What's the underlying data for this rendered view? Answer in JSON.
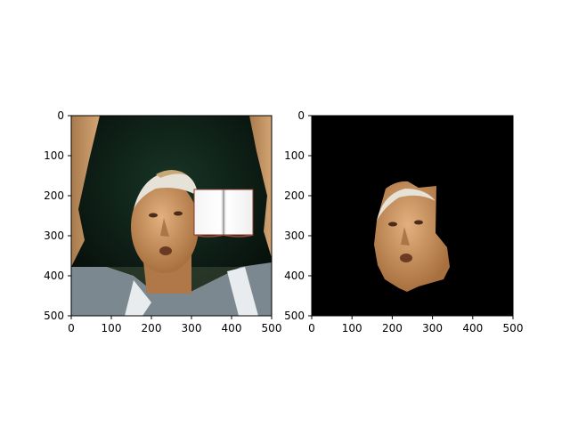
{
  "panels": [
    {
      "x_ticks": [
        "0",
        "100",
        "200",
        "300",
        "400",
        "500"
      ],
      "y_ticks": [
        "0",
        "100",
        "200",
        "300",
        "400",
        "500"
      ]
    },
    {
      "x_ticks": [
        "0",
        "100",
        "200",
        "300",
        "400",
        "500"
      ],
      "y_ticks": [
        "0",
        "100",
        "200",
        "300",
        "400",
        "500"
      ]
    }
  ],
  "colors": {
    "background_dark": "#0b1a14",
    "skin": "#c6925e",
    "shirt": "#7c8890",
    "mask_bg": "#000000"
  },
  "icons": [
    "book-icon"
  ]
}
